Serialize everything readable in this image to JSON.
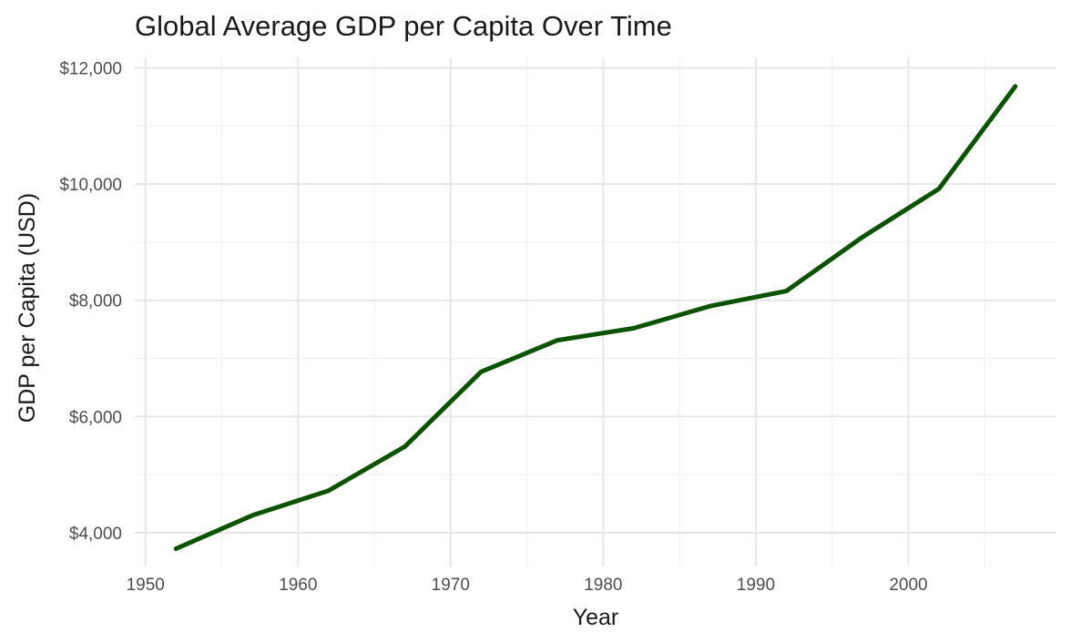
{
  "chart_data": {
    "type": "line",
    "title": "Global Average GDP per Capita Over Time",
    "xlabel": "Year",
    "ylabel": "GDP per Capita (USD)",
    "xlim": [
      1949.3,
      2009.7
    ],
    "ylim": [
      3420,
      12180
    ],
    "x_ticks": [
      1950,
      1960,
      1970,
      1980,
      1990,
      2000
    ],
    "x_minor_ticks": [
      1955,
      1965,
      1975,
      1985,
      1995,
      2005
    ],
    "y_ticks": [
      4000,
      6000,
      8000,
      10000,
      12000
    ],
    "y_tick_labels": [
      "$4,000",
      "$6,000",
      "$8,000",
      "$10,000",
      "$12,000"
    ],
    "y_minor_ticks": [
      5000,
      7000,
      9000,
      11000
    ],
    "grid": true,
    "line_color": "#0b5300",
    "x": [
      1952,
      1957,
      1962,
      1967,
      1972,
      1977,
      1982,
      1987,
      1992,
      1997,
      2002,
      2007
    ],
    "series": [
      {
        "values": [
          3725,
          4299,
          4726,
          5484,
          6770,
          7313,
          7519,
          7901,
          8159,
          9090,
          9918,
          11680
        ]
      }
    ]
  }
}
